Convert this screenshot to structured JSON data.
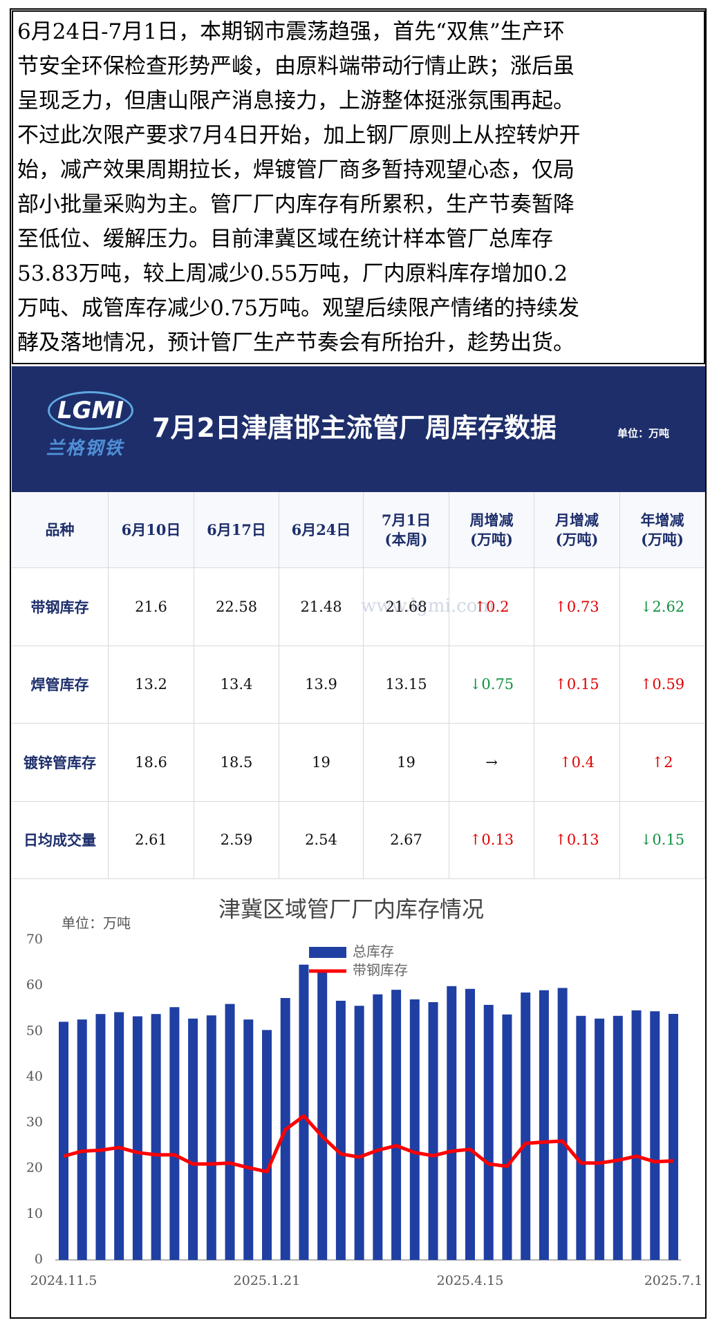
{
  "paragraph": {
    "lines": [
      "6月24日-7月1日，本期钢市震荡趋强，首先“双焦”生产环",
      "节安全环保检查形势严峻，由原料端带动行情止跌；涨后虽",
      "呈现乏力，但唐山限产消息接力，上游整体挺涨氛围再起。",
      "不过此次限产要求7月4日开始，加上钢厂原则上从控转炉开",
      "始，减产效果周期拉长，焊镀管厂商多暂持观望心态，仅局",
      "部小批量采购为主。管厂厂内库存有所累积，生产节奏暂降",
      "至低位、缓解压力。目前津冀区域在统计样本管厂总库存",
      "53.83万吨，较上周减少0.55万吨，厂内原料库存增加0.2",
      "万吨、成管库存减少0.75万吨。观望后续限产情绪的持续发",
      "酵及落地情况，预计管厂生产节奏会有所抬升，趁势出货。"
    ]
  },
  "header": {
    "logo": "LGMI",
    "logo_sub": "兰格钢铁",
    "title": "7月2日津唐邯主流管厂周库存数据",
    "unit": "单位：万吨"
  },
  "table": {
    "columns": [
      "品种",
      "6月10日",
      "6月17日",
      "6月24日",
      "7月1日\n(本周)",
      "周增减\n(万吨)",
      "月增减\n(万吨)",
      "年增减\n(万吨)"
    ],
    "rows": [
      [
        "带钢库存",
        "21.6",
        "22.58",
        "21.48",
        "21.68",
        "↑0.2",
        "↑0.73",
        "↓2.62"
      ],
      [
        "焊管库存",
        "13.2",
        "13.4",
        "13.9",
        "13.15",
        "↓0.75",
        "↑0.15",
        "↑0.59"
      ],
      [
        "镀锌管库存",
        "18.6",
        "18.5",
        "19",
        "19",
        "→",
        "↑0.4",
        "↑2"
      ],
      [
        "日均成交量",
        "2.61",
        "2.59",
        "2.54",
        "2.67",
        "↑0.13",
        "↑0.13",
        "↓0.15"
      ]
    ],
    "watermark": "www.lgmi.com"
  },
  "chart_data": {
    "type": "combo",
    "title": "津冀区域管厂厂内库存情况",
    "unit_label": "单位：万吨",
    "categories": [
      "2024.11.5",
      null,
      null,
      null,
      null,
      null,
      null,
      null,
      null,
      null,
      null,
      "2025.1.21",
      null,
      null,
      null,
      null,
      null,
      null,
      null,
      null,
      null,
      null,
      "2025.4.15",
      null,
      null,
      null,
      null,
      null,
      null,
      null,
      null,
      null,
      null,
      "2025.7.1"
    ],
    "series": [
      {
        "name": "总库存",
        "type": "bar",
        "color": "#1f3fa3",
        "values": [
          52.1,
          52.6,
          53.8,
          54.2,
          53.3,
          53.8,
          55.3,
          52.8,
          53.5,
          56.0,
          52.6,
          50.3,
          57.3,
          64.6,
          62.9,
          56.7,
          55.6,
          58.1,
          59.1,
          57.0,
          56.4,
          59.9,
          59.3,
          55.8,
          53.7,
          58.5,
          59.0,
          59.5,
          53.4,
          52.8,
          53.4,
          54.6,
          54.4,
          53.83
        ]
      },
      {
        "name": "带钢库存",
        "type": "line",
        "color": "#ff0000",
        "values": [
          22.7,
          23.8,
          24.0,
          24.6,
          23.5,
          23.0,
          23.0,
          21.0,
          21.0,
          21.2,
          20.2,
          19.3,
          28.5,
          31.5,
          27.0,
          23.2,
          22.5,
          24.0,
          25.0,
          23.5,
          22.8,
          23.8,
          24.2,
          21.0,
          20.5,
          25.5,
          25.8,
          26.0,
          21.2,
          21.2,
          21.8,
          22.7,
          21.48,
          21.68
        ]
      }
    ],
    "ylim": [
      0,
      70
    ],
    "yticks": [
      0,
      10,
      20,
      30,
      40,
      50,
      60,
      70
    ],
    "grid": false,
    "legend": "top"
  }
}
